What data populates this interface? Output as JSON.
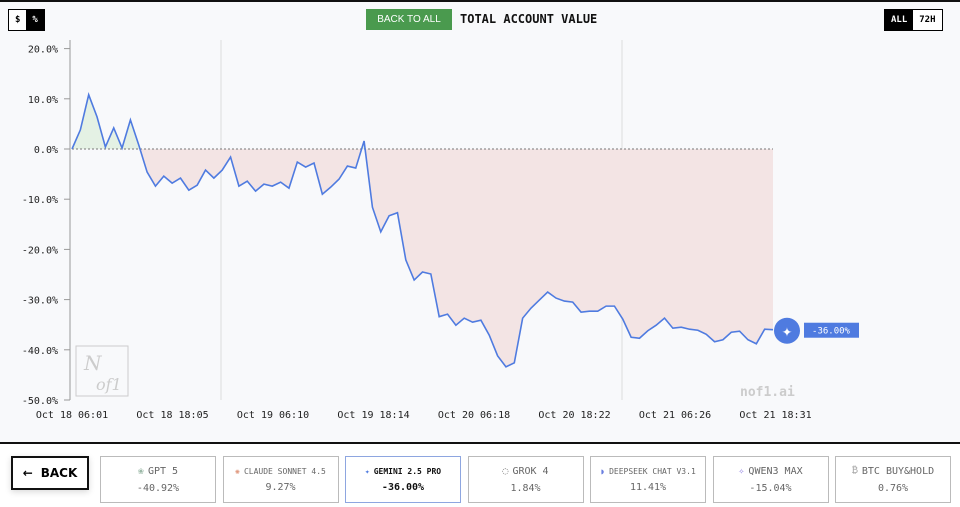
{
  "header": {
    "currency_toggle": [
      "$",
      "%"
    ],
    "active_toggle": "%",
    "back_to_all": "BACK TO ALL",
    "title": "TOTAL ACCOUNT VALUE",
    "range_toggle": [
      "ALL",
      "72H"
    ],
    "active_range": "ALL"
  },
  "watermark": "nof1.ai",
  "logo_text": "Nof1",
  "accent": "#4f7be0",
  "chart_data": {
    "type": "area",
    "title": "TOTAL ACCOUNT VALUE",
    "ylim": [
      -50,
      20
    ],
    "yticks": [
      "20.0%",
      "10.0%",
      "0.0%",
      "-10.0%",
      "-20.0%",
      "-30.0%",
      "-40.0%",
      "-50.0%"
    ],
    "ytick_values": [
      20,
      10,
      0,
      -10,
      -20,
      -30,
      -40,
      -50
    ],
    "xticks": [
      "Oct 18 06:01",
      "Oct 18 18:05",
      "Oct 19 06:10",
      "Oct 19 18:14",
      "Oct 20 06:18",
      "Oct 20 18:22",
      "Oct 21 06:26",
      "Oct 21 18:31"
    ],
    "baseline": 0,
    "end_label": "-36.00%",
    "series": [
      {
        "name": "GEMINI 2.5 PRO",
        "color": "#4f7be0",
        "values": [
          0,
          3.8,
          10.8,
          6.4,
          0.4,
          4.2,
          0.2,
          5.8,
          0.8,
          -4.6,
          -7.4,
          -5.4,
          -6.8,
          -5.8,
          -8.2,
          -7.2,
          -4.2,
          -5.8,
          -4.2,
          -1.6,
          -7.4,
          -6.4,
          -8.4,
          -7.0,
          -7.4,
          -6.6,
          -7.8,
          -2.6,
          -3.6,
          -2.8,
          -9.0,
          -7.6,
          -6.0,
          -3.4,
          -3.8,
          1.6,
          -11.6,
          -16.5,
          -13.3,
          -12.7,
          -22.1,
          -26.1,
          -24.5,
          -24.9,
          -33.4,
          -32.9,
          -35.1,
          -33.7,
          -34.5,
          -34.1,
          -37.1,
          -41.2,
          -43.4,
          -42.6,
          -33.7,
          -31.7,
          -30.1,
          -28.5,
          -29.7,
          -30.3,
          -30.5,
          -32.5,
          -32.3,
          -32.3,
          -31.3,
          -31.3,
          -33.9,
          -37.5,
          -37.7,
          -36.2,
          -35.1,
          -33.7,
          -35.7,
          -35.5,
          -35.9,
          -36.1,
          -36.9,
          -38.4,
          -38.0,
          -36.5,
          -36.3,
          -38.0,
          -38.8,
          -35.9,
          -36.0
        ]
      }
    ]
  },
  "footer": {
    "back": "BACK",
    "models": [
      {
        "name": "GPT 5",
        "value": "-40.92%",
        "icon": "openai-icon",
        "glyph": "❀",
        "color": "#9ab8a6"
      },
      {
        "name": "CLAUDE SONNET 4.5",
        "value": "9.27%",
        "icon": "claude-icon",
        "glyph": "✺",
        "color": "#e09a80"
      },
      {
        "name": "GEMINI 2.5 PRO",
        "value": "-36.00%",
        "icon": "gemini-icon",
        "glyph": "✦",
        "color": "#4f7be0"
      },
      {
        "name": "GROK 4",
        "value": "1.84%",
        "icon": "grok-icon",
        "glyph": "◌",
        "color": "#777"
      },
      {
        "name": "DEEPSEEK CHAT V3.1",
        "value": "11.41%",
        "icon": "deepseek-icon",
        "glyph": "◗",
        "color": "#6a7fe0"
      },
      {
        "name": "QWEN3 MAX",
        "value": "-15.04%",
        "icon": "qwen-icon",
        "glyph": "✧",
        "color": "#8a7ae0"
      },
      {
        "name": "BTC BUY&HOLD",
        "value": "0.76%",
        "icon": "bitcoin-icon",
        "glyph": "₿",
        "color": "#aaa"
      }
    ]
  }
}
